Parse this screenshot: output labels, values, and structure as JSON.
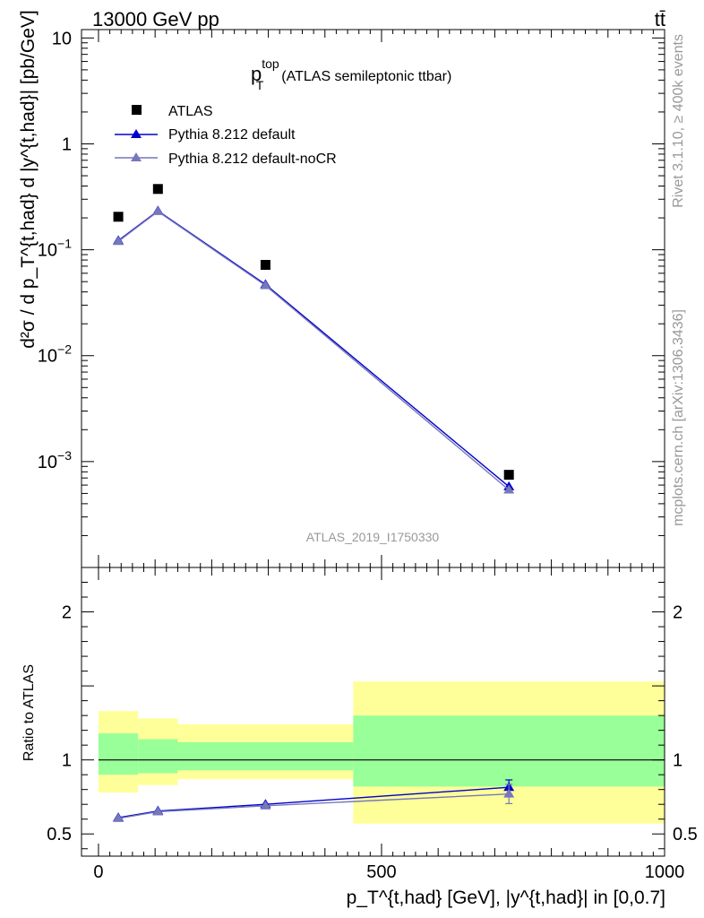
{
  "header": {
    "energy_label": "13000 GeV pp",
    "process_label": "tt̄"
  },
  "side": {
    "rivet_label": "Rivet 3.1.10, ≥ 400k events",
    "mcplots_label": "mcplots.cern.ch [arXiv:1306.3436]"
  },
  "chart_data": [
    {
      "type": "scatter",
      "panel": "main",
      "title_main": "p",
      "title_sup": "top",
      "title_sub": "T",
      "title_rest": "(ATLAS semileptonic ttbar)",
      "ylabel": "d²σ / d p_T^{t,had} d |y^{t,had}| [pb/GeV]",
      "yscale": "log",
      "ylim": [
        0.0001,
        12
      ],
      "yticks": [
        {
          "base": "10",
          "exp": "",
          "value": 10
        },
        {
          "base": "1",
          "exp": "",
          "value": 1
        },
        {
          "base": "10",
          "exp": "−1",
          "value": 0.1
        },
        {
          "base": "10",
          "exp": "−2",
          "value": 0.01
        },
        {
          "base": "10",
          "exp": "−3",
          "value": 0.001
        }
      ],
      "xlim": [
        -30,
        1000
      ],
      "watermark": "ATLAS_2019_I1750330",
      "legend_position": "top-left",
      "series": [
        {
          "name": "ATLAS",
          "marker": "square",
          "color": "#000000",
          "x": [
            35,
            105,
            295,
            725
          ],
          "y": [
            0.205,
            0.375,
            0.072,
            0.00075
          ]
        },
        {
          "name": "Pythia 8.212 default",
          "marker": "triangle",
          "color": "#0000cc",
          "x": [
            35,
            105,
            295,
            725
          ],
          "y": [
            0.122,
            0.233,
            0.047,
            0.00058
          ]
        },
        {
          "name": "Pythia 8.212 default-noCR",
          "marker": "triangle",
          "color": "#7777bb",
          "x": [
            35,
            105,
            295,
            725
          ],
          "y": [
            0.12,
            0.23,
            0.046,
            0.00054
          ]
        }
      ]
    },
    {
      "type": "line",
      "panel": "ratio",
      "ylabel": "Ratio to ATLAS",
      "ylim": [
        0.35,
        2.3
      ],
      "yticks": [
        "0.5",
        "1",
        "2"
      ],
      "xlim": [
        -30,
        1000
      ],
      "xticks": [
        "0",
        "500",
        "1000"
      ],
      "xlabel": "p_T^{t,had} [GeV], |y^{t,had}| in [0,0.7]",
      "reference": 1,
      "bands": [
        {
          "xlo": 0,
          "xhi": 70,
          "y1lo": 0.9,
          "y1hi": 1.18,
          "y2lo": 0.78,
          "y2hi": 1.33
        },
        {
          "xlo": 70,
          "xhi": 140,
          "y1lo": 0.91,
          "y1hi": 1.14,
          "y2lo": 0.83,
          "y2hi": 1.28
        },
        {
          "xlo": 140,
          "xhi": 450,
          "y1lo": 0.93,
          "y1hi": 1.12,
          "y2lo": 0.87,
          "y2hi": 1.24
        },
        {
          "xlo": 450,
          "xhi": 1000,
          "y1lo": 0.82,
          "y1hi": 1.3,
          "y2lo": 0.57,
          "y2hi": 1.53
        }
      ],
      "series": [
        {
          "name": "Pythia 8.212 default",
          "color": "#0000cc",
          "x": [
            35,
            105,
            295,
            725
          ],
          "y": [
            0.61,
            0.655,
            0.7,
            0.815
          ],
          "err": [
            0,
            0,
            0,
            0.05
          ]
        },
        {
          "name": "Pythia 8.212 default-noCR",
          "color": "#7777bb",
          "x": [
            35,
            105,
            295,
            725
          ],
          "y": [
            0.605,
            0.65,
            0.69,
            0.77
          ],
          "err": [
            0,
            0,
            0,
            0.065
          ]
        }
      ]
    }
  ]
}
